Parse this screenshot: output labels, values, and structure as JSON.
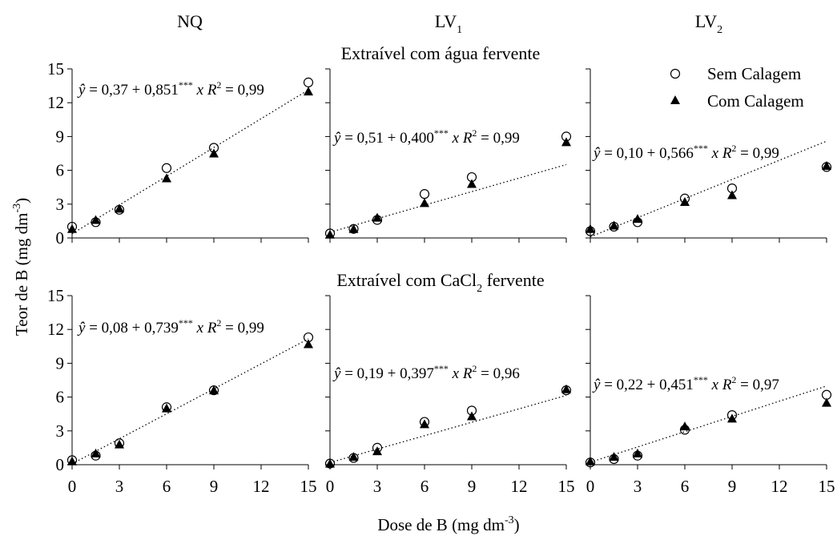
{
  "chart_data": {
    "type": "scatter",
    "xlabel": "Dose de B (mg dm",
    "xlabel_sup": "-3",
    "xlabel_end": ")",
    "ylabel": "Teor de B (mg dm",
    "ylabel_sup": "-3",
    "ylabel_end": ")",
    "xlim": [
      0,
      15
    ],
    "ylim": [
      0,
      15
    ],
    "xticks": [
      "0",
      "3",
      "6",
      "9",
      "12",
      "15"
    ],
    "yticks": [
      "0",
      "3",
      "6",
      "9",
      "12",
      "15"
    ],
    "x": [
      0,
      1.5,
      3,
      6,
      9,
      15
    ],
    "columns": [
      {
        "title": "NQ",
        "sub": ""
      },
      {
        "title": "LV",
        "sub": "1"
      },
      {
        "title": "LV",
        "sub": "2"
      }
    ],
    "rows": [
      {
        "title": "Extraível com água fervente",
        "sub": "",
        "title_end": ""
      },
      {
        "title": "Extraível com CaCl",
        "sub": "2",
        "title_end": " fervente"
      }
    ],
    "legend": {
      "position": "top-right",
      "items": [
        "Sem Calagem",
        "Com Calagem"
      ]
    },
    "panels": [
      {
        "row": 0,
        "col": 0,
        "sem": [
          1.0,
          1.4,
          2.5,
          6.2,
          8.0,
          13.8
        ],
        "com": [
          0.8,
          1.6,
          2.6,
          5.3,
          7.5,
          13.0
        ],
        "a": 0.37,
        "b": 0.851,
        "eq_a": "0,37",
        "eq_b": "0,851",
        "r2": "0,99"
      },
      {
        "row": 0,
        "col": 1,
        "sem": [
          0.4,
          0.8,
          1.6,
          3.9,
          5.4,
          9.0
        ],
        "com": [
          0.3,
          0.8,
          1.8,
          3.1,
          4.8,
          8.5
        ],
        "a": 0.51,
        "b": 0.4,
        "eq_a": "0,51",
        "eq_b": "0,400",
        "r2": "0,99"
      },
      {
        "row": 0,
        "col": 2,
        "sem": [
          0.6,
          1.0,
          1.4,
          3.5,
          4.4,
          6.3
        ],
        "com": [
          0.8,
          1.1,
          1.7,
          3.2,
          3.8,
          6.4
        ],
        "a": 0.1,
        "b": 0.566,
        "eq_a": "0,10",
        "eq_b": "0,566",
        "r2": "0,99"
      },
      {
        "row": 1,
        "col": 0,
        "sem": [
          0.4,
          0.8,
          1.9,
          5.1,
          6.6,
          11.3
        ],
        "com": [
          0.3,
          1.0,
          1.8,
          5.0,
          6.6,
          10.7
        ],
        "a": 0.08,
        "b": 0.739,
        "eq_a": "0,08",
        "eq_b": "0,739",
        "r2": "0,99"
      },
      {
        "row": 1,
        "col": 1,
        "sem": [
          0.1,
          0.6,
          1.5,
          3.8,
          4.8,
          6.6
        ],
        "com": [
          0.1,
          0.7,
          1.2,
          3.6,
          4.3,
          6.7
        ],
        "a": 0.19,
        "b": 0.397,
        "eq_a": "0,19",
        "eq_b": "0,397",
        "r2": "0,96"
      },
      {
        "row": 1,
        "col": 2,
        "sem": [
          0.2,
          0.5,
          0.8,
          3.1,
          4.4,
          6.2
        ],
        "com": [
          0.3,
          0.7,
          1.0,
          3.4,
          4.1,
          5.5
        ],
        "a": 0.22,
        "b": 0.451,
        "eq_a": "0,22",
        "eq_b": "0,451",
        "r2": "0,97"
      }
    ]
  }
}
